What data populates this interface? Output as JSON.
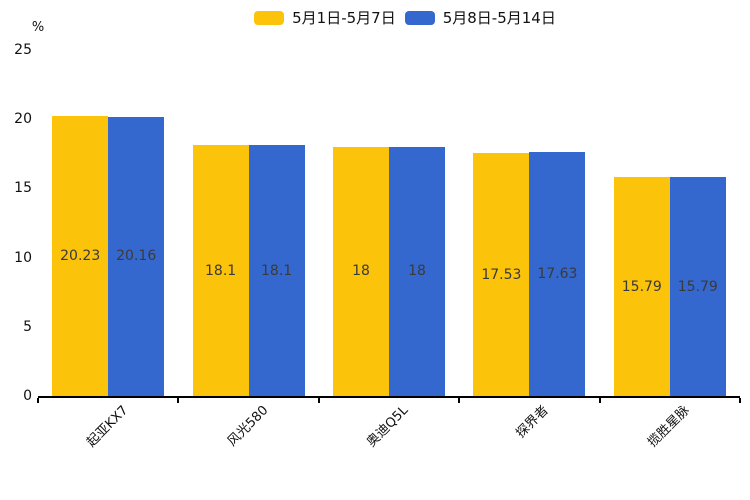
{
  "chart_data": {
    "type": "bar",
    "title": "",
    "categories": [
      "起亚KX7",
      "风光580",
      "奥迪Q5L",
      "探界者",
      "揽胜星脉"
    ],
    "series": [
      {
        "name": "5月1日-5月7日",
        "color": "#FCC30B",
        "values": [
          20.23,
          18.1,
          18,
          17.53,
          15.79
        ]
      },
      {
        "name": "5月8日-5月14日",
        "color": "#3568CE",
        "values": [
          20.16,
          18.1,
          18,
          17.63,
          15.79
        ]
      }
    ],
    "ylabel": "%",
    "ylim": [
      0,
      25
    ],
    "yticks": [
      0,
      5,
      10,
      15,
      20,
      25
    ],
    "grid": false,
    "legend_position": "top-center",
    "bar_labels_inside": true,
    "colors": {
      "axis": "#000000",
      "tick_text": "#111111",
      "bar_value_text": "#3a3a3a",
      "background": "#ffffff"
    }
  }
}
